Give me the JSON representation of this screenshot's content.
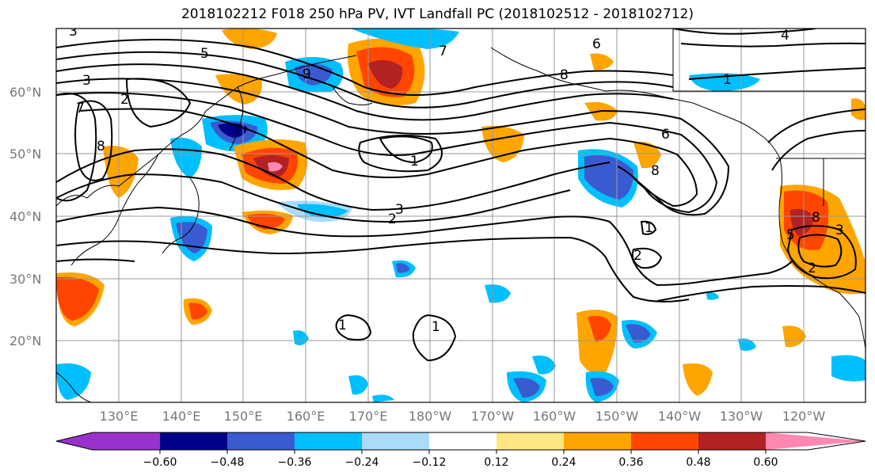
{
  "title": "2018102212 F018 250 hPa PV, IVT Landfall PC (2018102512 - 2018102712)",
  "latitude_labels": [
    "60°N",
    "50°N",
    "40°N",
    "30°N",
    "20°N"
  ],
  "longitude_labels": [
    "130°E",
    "140°E",
    "150°E",
    "160°E",
    "170°E",
    "180°W",
    "170°W",
    "160°W",
    "150°W",
    "140°W",
    "130°W",
    "120°W"
  ],
  "colorbar": {
    "tick_labels": [
      "−0.60",
      "−0.48",
      "−0.36",
      "−0.24",
      "−0.12",
      "0.12",
      "0.24",
      "0.36",
      "0.48",
      "0.60"
    ],
    "bin_colors": [
      "#9932cc",
      "#00008b",
      "#3a5bd0",
      "#00bfff",
      "#aadcfa",
      "#ffffff",
      "#ffe680",
      "#ffa500",
      "#ff4500",
      "#b22222",
      "#ff88b0"
    ]
  },
  "contour_labels": [
    "3",
    "5",
    "3",
    "2",
    "7",
    "9",
    "8",
    "6",
    "1",
    "8",
    "6",
    "8",
    "2",
    "3",
    "1",
    "2",
    "1",
    "1",
    "2",
    "8",
    "5",
    "3",
    "4",
    "1",
    "7"
  ]
}
